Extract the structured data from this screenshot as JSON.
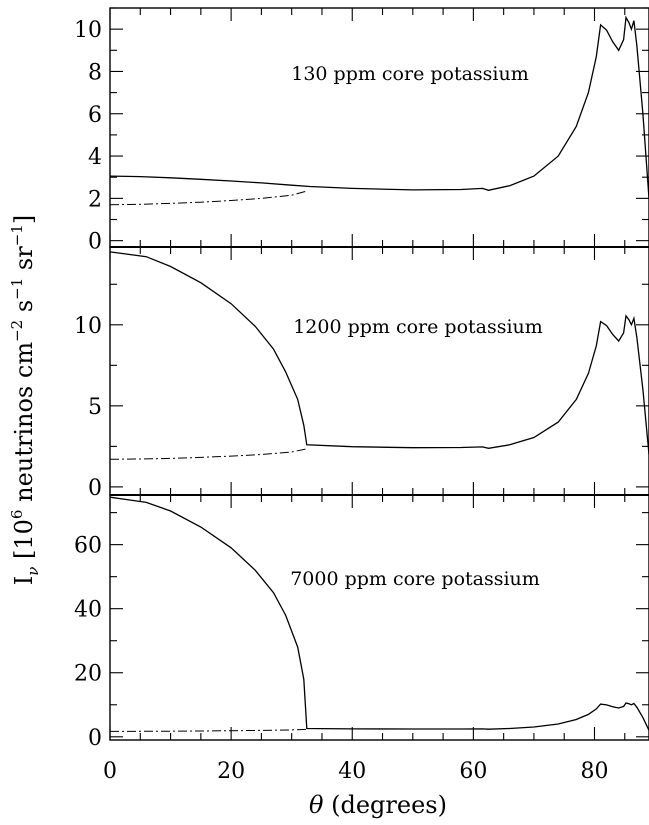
{
  "chart_data": {
    "type": "line",
    "x_axis": {
      "label_symbol": "θ",
      "label_text": " (degrees)",
      "range": [
        0,
        89
      ],
      "tick_labels": [
        "0",
        "20",
        "40",
        "60",
        "80"
      ]
    },
    "y_axis": {
      "label_parts": [
        "I",
        "ν",
        " [10",
        "6",
        " neutrinos cm",
        "−2",
        " s",
        "−1",
        " sr",
        "−1",
        "]"
      ]
    },
    "panels": [
      {
        "annotation": "130 ppm core potassium",
        "ylim": [
          -0.3,
          11
        ],
        "major_ticks": [
          0,
          2,
          4,
          6,
          8,
          10
        ],
        "minor_step": 1,
        "tick_labels": [
          "0",
          "2",
          "4",
          "6",
          "8",
          "10"
        ],
        "series": [
          {
            "style": "solid",
            "points": [
              [
                0,
                3.05
              ],
              [
                5,
                3.03
              ],
              [
                10,
                2.97
              ],
              [
                15,
                2.9
              ],
              [
                20,
                2.82
              ],
              [
                25,
                2.73
              ],
              [
                30,
                2.62
              ],
              [
                33,
                2.56
              ],
              [
                40,
                2.47
              ],
              [
                50,
                2.4
              ],
              [
                58,
                2.42
              ],
              [
                61.5,
                2.47
              ],
              [
                62.5,
                2.38
              ],
              [
                66,
                2.6
              ],
              [
                70,
                3.05
              ],
              [
                74,
                4.0
              ],
              [
                77,
                5.4
              ],
              [
                79,
                7.0
              ],
              [
                80.3,
                8.7
              ],
              [
                81,
                10.2
              ],
              [
                82,
                9.95
              ],
              [
                83,
                9.4
              ],
              [
                84,
                9.0
              ],
              [
                84.8,
                9.5
              ],
              [
                85.2,
                10.55
              ],
              [
                85.7,
                10.3
              ],
              [
                86.1,
                10.0
              ],
              [
                86.5,
                10.4
              ],
              [
                87,
                9.2
              ],
              [
                88,
                6.0
              ],
              [
                89,
                2.0
              ]
            ]
          },
          {
            "style": "dashdot",
            "points": [
              [
                0,
                1.7
              ],
              [
                5,
                1.72
              ],
              [
                10,
                1.76
              ],
              [
                15,
                1.82
              ],
              [
                20,
                1.9
              ],
              [
                25,
                2.0
              ],
              [
                30,
                2.15
              ],
              [
                32.5,
                2.35
              ]
            ]
          }
        ]
      },
      {
        "annotation": "1200 ppm core potassium",
        "ylim": [
          -0.5,
          14.8
        ],
        "major_ticks": [
          0,
          5,
          10
        ],
        "minor_step": 2.5,
        "tick_labels": [
          "0",
          "5",
          "10"
        ],
        "series": [
          {
            "style": "solid",
            "points": [
              [
                0,
                14.5
              ],
              [
                6,
                14.2
              ],
              [
                10,
                13.6
              ],
              [
                15,
                12.6
              ],
              [
                20,
                11.3
              ],
              [
                24,
                9.9
              ],
              [
                27,
                8.5
              ],
              [
                29,
                7.1
              ],
              [
                31,
                5.4
              ],
              [
                32,
                3.8
              ],
              [
                32.5,
                2.6
              ],
              [
                40,
                2.48
              ],
              [
                50,
                2.42
              ],
              [
                58,
                2.43
              ],
              [
                61.5,
                2.47
              ],
              [
                62.5,
                2.38
              ],
              [
                66,
                2.6
              ],
              [
                70,
                3.05
              ],
              [
                74,
                4.0
              ],
              [
                77,
                5.4
              ],
              [
                79,
                7.0
              ],
              [
                80.3,
                8.7
              ],
              [
                81,
                10.2
              ],
              [
                82,
                9.95
              ],
              [
                83,
                9.4
              ],
              [
                84,
                9.0
              ],
              [
                84.8,
                9.5
              ],
              [
                85.2,
                10.55
              ],
              [
                85.7,
                10.3
              ],
              [
                86.1,
                10.0
              ],
              [
                86.5,
                10.4
              ],
              [
                87,
                9.2
              ],
              [
                88,
                6.0
              ],
              [
                89,
                2.0
              ]
            ]
          },
          {
            "style": "dashdot",
            "points": [
              [
                0,
                1.7
              ],
              [
                5,
                1.72
              ],
              [
                10,
                1.76
              ],
              [
                15,
                1.82
              ],
              [
                20,
                1.9
              ],
              [
                25,
                2.0
              ],
              [
                30,
                2.15
              ],
              [
                32.5,
                2.35
              ]
            ]
          }
        ]
      },
      {
        "annotation": "7000 ppm core potassium",
        "ylim": [
          -1,
          75.5
        ],
        "major_ticks": [
          0,
          20,
          40,
          60
        ],
        "minor_step": 10,
        "tick_labels": [
          "0",
          "20",
          "40",
          "60"
        ],
        "series": [
          {
            "style": "solid",
            "points": [
              [
                0,
                74.8
              ],
              [
                6,
                73.2
              ],
              [
                10,
                70.5
              ],
              [
                15,
                65.5
              ],
              [
                20,
                59
              ],
              [
                24,
                52
              ],
              [
                27,
                45
              ],
              [
                29,
                38
              ],
              [
                31,
                28
              ],
              [
                32,
                18
              ],
              [
                32.5,
                2.6
              ],
              [
                40,
                2.48
              ],
              [
                50,
                2.42
              ],
              [
                58,
                2.43
              ],
              [
                61.5,
                2.47
              ],
              [
                62.5,
                2.38
              ],
              [
                66,
                2.6
              ],
              [
                70,
                3.05
              ],
              [
                74,
                4.0
              ],
              [
                77,
                5.4
              ],
              [
                79,
                7.0
              ],
              [
                80.3,
                8.7
              ],
              [
                81,
                10.2
              ],
              [
                82,
                9.95
              ],
              [
                83,
                9.4
              ],
              [
                84,
                9.0
              ],
              [
                84.8,
                9.5
              ],
              [
                85.2,
                10.55
              ],
              [
                85.7,
                10.3
              ],
              [
                86.1,
                10.0
              ],
              [
                86.5,
                10.4
              ],
              [
                87,
                9.2
              ],
              [
                88,
                6.0
              ],
              [
                89,
                2.0
              ]
            ]
          },
          {
            "style": "dashdot",
            "points": [
              [
                0,
                1.7
              ],
              [
                5,
                1.72
              ],
              [
                10,
                1.76
              ],
              [
                15,
                1.82
              ],
              [
                20,
                1.9
              ],
              [
                25,
                2.0
              ],
              [
                30,
                2.15
              ],
              [
                32.5,
                2.35
              ]
            ]
          }
        ]
      }
    ]
  }
}
